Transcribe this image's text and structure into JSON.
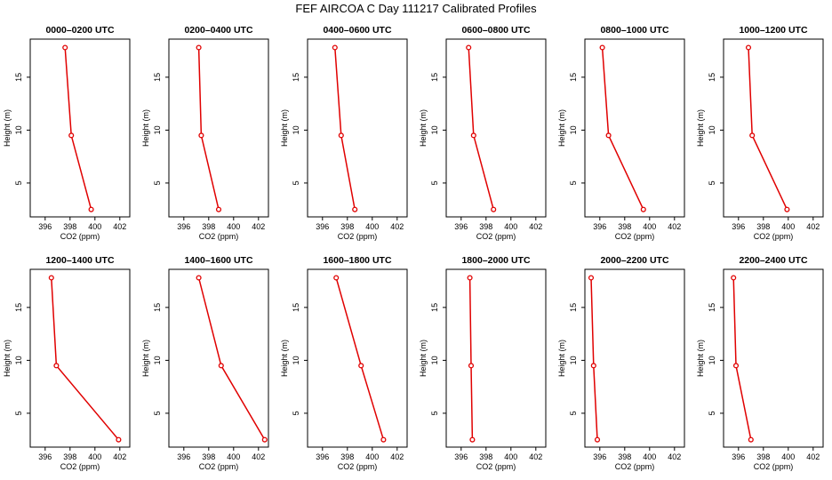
{
  "title": "FEF AIRCOA C  Day 111217  Calibrated Profiles",
  "colors": {
    "series": "#e00000",
    "axes": "#000000"
  },
  "chart_data": [
    {
      "type": "line",
      "title": "0000–0200 UTC",
      "xlabel": "CO2 (ppm)",
      "ylabel": "Height (m)",
      "xlim": [
        394.8,
        402.8
      ],
      "ylim": [
        1.8,
        18.6
      ],
      "xticks": [
        396,
        398,
        400,
        402
      ],
      "yticks": [
        5,
        10,
        15
      ],
      "marker": "open-circle",
      "series": [
        {
          "x": [
            397.6,
            398.1,
            399.7
          ],
          "y": [
            17.8,
            9.5,
            2.5
          ]
        }
      ]
    },
    {
      "type": "line",
      "title": "0200–0400 UTC",
      "xlabel": "CO2 (ppm)",
      "ylabel": "Height (m)",
      "xlim": [
        394.8,
        402.8
      ],
      "ylim": [
        1.8,
        18.6
      ],
      "xticks": [
        396,
        398,
        400,
        402
      ],
      "yticks": [
        5,
        10,
        15
      ],
      "marker": "open-circle",
      "series": [
        {
          "x": [
            397.2,
            397.4,
            398.8
          ],
          "y": [
            17.8,
            9.5,
            2.5
          ]
        }
      ]
    },
    {
      "type": "line",
      "title": "0400–0600 UTC",
      "xlabel": "CO2 (ppm)",
      "ylabel": "Height (m)",
      "xlim": [
        394.8,
        402.8
      ],
      "ylim": [
        1.8,
        18.6
      ],
      "xticks": [
        396,
        398,
        400,
        402
      ],
      "yticks": [
        5,
        10,
        15
      ],
      "marker": "open-circle",
      "series": [
        {
          "x": [
            397.0,
            397.5,
            398.6
          ],
          "y": [
            17.8,
            9.5,
            2.5
          ]
        }
      ]
    },
    {
      "type": "line",
      "title": "0600–0800 UTC",
      "xlabel": "CO2 (ppm)",
      "ylabel": "Height (m)",
      "xlim": [
        394.8,
        402.8
      ],
      "ylim": [
        1.8,
        18.6
      ],
      "xticks": [
        396,
        398,
        400,
        402
      ],
      "yticks": [
        5,
        10,
        15
      ],
      "marker": "open-circle",
      "series": [
        {
          "x": [
            396.6,
            397.0,
            398.6
          ],
          "y": [
            17.8,
            9.5,
            2.5
          ]
        }
      ]
    },
    {
      "type": "line",
      "title": "0800–1000 UTC",
      "xlabel": "CO2 (ppm)",
      "ylabel": "Height (m)",
      "xlim": [
        394.8,
        402.8
      ],
      "ylim": [
        1.8,
        18.6
      ],
      "xticks": [
        396,
        398,
        400,
        402
      ],
      "yticks": [
        5,
        10,
        15
      ],
      "marker": "open-circle",
      "series": [
        {
          "x": [
            396.2,
            396.7,
            399.5
          ],
          "y": [
            17.8,
            9.5,
            2.5
          ]
        }
      ]
    },
    {
      "type": "line",
      "title": "1000–1200 UTC",
      "xlabel": "CO2 (ppm)",
      "ylabel": "Height (m)",
      "xlim": [
        394.8,
        402.8
      ],
      "ylim": [
        1.8,
        18.6
      ],
      "xticks": [
        396,
        398,
        400,
        402
      ],
      "yticks": [
        5,
        10,
        15
      ],
      "marker": "open-circle",
      "series": [
        {
          "x": [
            396.8,
            397.1,
            399.9
          ],
          "y": [
            17.8,
            9.5,
            2.5
          ]
        }
      ]
    },
    {
      "type": "line",
      "title": "1200–1400 UTC",
      "xlabel": "CO2 (ppm)",
      "ylabel": "Height (m)",
      "xlim": [
        394.8,
        402.8
      ],
      "ylim": [
        1.8,
        18.6
      ],
      "xticks": [
        396,
        398,
        400,
        402
      ],
      "yticks": [
        5,
        10,
        15
      ],
      "marker": "open-circle",
      "series": [
        {
          "x": [
            396.5,
            396.9,
            401.9
          ],
          "y": [
            17.8,
            9.5,
            2.5
          ]
        }
      ]
    },
    {
      "type": "line",
      "title": "1400–1600 UTC",
      "xlabel": "CO2 (ppm)",
      "ylabel": "Height (m)",
      "xlim": [
        394.8,
        402.8
      ],
      "ylim": [
        1.8,
        18.6
      ],
      "xticks": [
        396,
        398,
        400,
        402
      ],
      "yticks": [
        5,
        10,
        15
      ],
      "marker": "open-circle",
      "series": [
        {
          "x": [
            397.2,
            399.0,
            402.5
          ],
          "y": [
            17.8,
            9.5,
            2.5
          ]
        }
      ]
    },
    {
      "type": "line",
      "title": "1600–1800 UTC",
      "xlabel": "CO2 (ppm)",
      "ylabel": "Height (m)",
      "xlim": [
        394.8,
        402.8
      ],
      "ylim": [
        1.8,
        18.6
      ],
      "xticks": [
        396,
        398,
        400,
        402
      ],
      "yticks": [
        5,
        10,
        15
      ],
      "marker": "open-circle",
      "series": [
        {
          "x": [
            397.1,
            399.1,
            400.9
          ],
          "y": [
            17.8,
            9.5,
            2.5
          ]
        }
      ]
    },
    {
      "type": "line",
      "title": "1800–2000 UTC",
      "xlabel": "CO2 (ppm)",
      "ylabel": "Height (m)",
      "xlim": [
        394.8,
        402.8
      ],
      "ylim": [
        1.8,
        18.6
      ],
      "xticks": [
        396,
        398,
        400,
        402
      ],
      "yticks": [
        5,
        10,
        15
      ],
      "marker": "open-circle",
      "series": [
        {
          "x": [
            396.7,
            396.8,
            396.9
          ],
          "y": [
            17.8,
            9.5,
            2.5
          ]
        }
      ]
    },
    {
      "type": "line",
      "title": "2000–2200 UTC",
      "xlabel": "CO2 (ppm)",
      "ylabel": "Height (m)",
      "xlim": [
        394.8,
        402.8
      ],
      "ylim": [
        1.8,
        18.6
      ],
      "xticks": [
        396,
        398,
        400,
        402
      ],
      "yticks": [
        5,
        10,
        15
      ],
      "marker": "open-circle",
      "series": [
        {
          "x": [
            395.3,
            395.5,
            395.8
          ],
          "y": [
            17.8,
            9.5,
            2.5
          ]
        }
      ]
    },
    {
      "type": "line",
      "title": "2200–2400 UTC",
      "xlabel": "CO2 (ppm)",
      "ylabel": "Height (m)",
      "xlim": [
        394.8,
        402.8
      ],
      "ylim": [
        1.8,
        18.6
      ],
      "xticks": [
        396,
        398,
        400,
        402
      ],
      "yticks": [
        5,
        10,
        15
      ],
      "marker": "open-circle",
      "series": [
        {
          "x": [
            395.6,
            395.8,
            397.0
          ],
          "y": [
            17.8,
            9.5,
            2.5
          ]
        }
      ]
    }
  ]
}
